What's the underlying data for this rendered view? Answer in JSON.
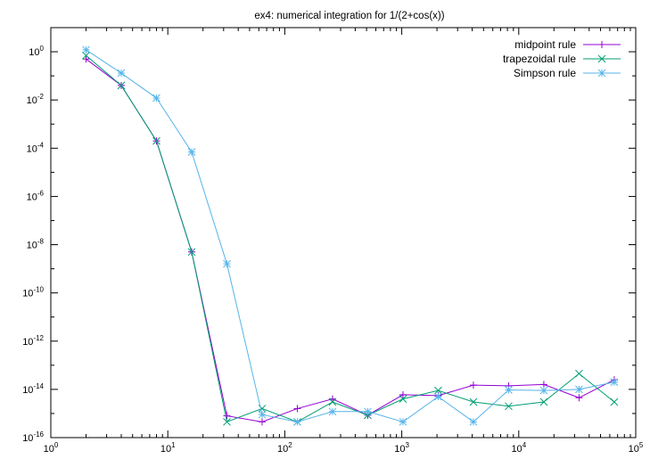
{
  "chart_data": {
    "type": "line",
    "title": "ex4: numerical integration for 1/(2+cos(x))",
    "xlabel": "",
    "ylabel": "",
    "xscale": "log",
    "yscale": "log",
    "xlim": [
      1,
      100000
    ],
    "ylim": [
      1e-16,
      10
    ],
    "x_ticks": [
      {
        "base": "10",
        "exp": "0",
        "value": 1
      },
      {
        "base": "10",
        "exp": "1",
        "value": 10
      },
      {
        "base": "10",
        "exp": "2",
        "value": 100
      },
      {
        "base": "10",
        "exp": "3",
        "value": 1000
      },
      {
        "base": "10",
        "exp": "4",
        "value": 10000
      },
      {
        "base": "10",
        "exp": "5",
        "value": 100000
      }
    ],
    "y_ticks": [
      {
        "base": "10",
        "exp": "-16",
        "value": 1e-16
      },
      {
        "base": "10",
        "exp": "-14",
        "value": 1e-14
      },
      {
        "base": "10",
        "exp": "-12",
        "value": 1e-12
      },
      {
        "base": "10",
        "exp": "-10",
        "value": 1e-10
      },
      {
        "base": "10",
        "exp": "-8",
        "value": 1e-08
      },
      {
        "base": "10",
        "exp": "-6",
        "value": 1e-06
      },
      {
        "base": "10",
        "exp": "-4",
        "value": 0.0001
      },
      {
        "base": "10",
        "exp": "-2",
        "value": 0.01
      },
      {
        "base": "10",
        "exp": "0",
        "value": 1
      }
    ],
    "grid": false,
    "legend_position": "top-right",
    "x": [
      2,
      4,
      8,
      16,
      32,
      64,
      128,
      256,
      512,
      1024,
      2048,
      4096,
      8192,
      16384,
      32768,
      65536
    ],
    "series": [
      {
        "name": "midpoint rule",
        "color": "#9400d3",
        "marker": "plus",
        "values": [
          0.5,
          0.04,
          0.0002,
          5e-09,
          8e-16,
          4.5e-16,
          1.6e-15,
          4e-15,
          8.5e-16,
          6e-15,
          5.5e-15,
          1.5e-14,
          1.4e-14,
          1.6e-14,
          4.5e-15,
          2.5e-14
        ]
      },
      {
        "name": "trapezoidal rule",
        "color": "#009e73",
        "marker": "cross",
        "values": [
          0.7,
          0.04,
          0.0002,
          5e-09,
          4.5e-16,
          1.6e-15,
          4.5e-16,
          3e-15,
          8.5e-16,
          4e-15,
          9e-15,
          3e-15,
          2e-15,
          3e-15,
          4.5e-14,
          3e-15
        ]
      },
      {
        "name": "Simpson rule",
        "color": "#56b4e9",
        "marker": "star",
        "values": [
          1.2,
          0.13,
          0.012,
          7e-05,
          1.6e-09,
          9e-16,
          4.5e-16,
          1.2e-15,
          1.2e-15,
          4.5e-16,
          5e-15,
          4.5e-16,
          9.5e-15,
          9e-15,
          1e-14,
          2e-14
        ]
      }
    ]
  }
}
